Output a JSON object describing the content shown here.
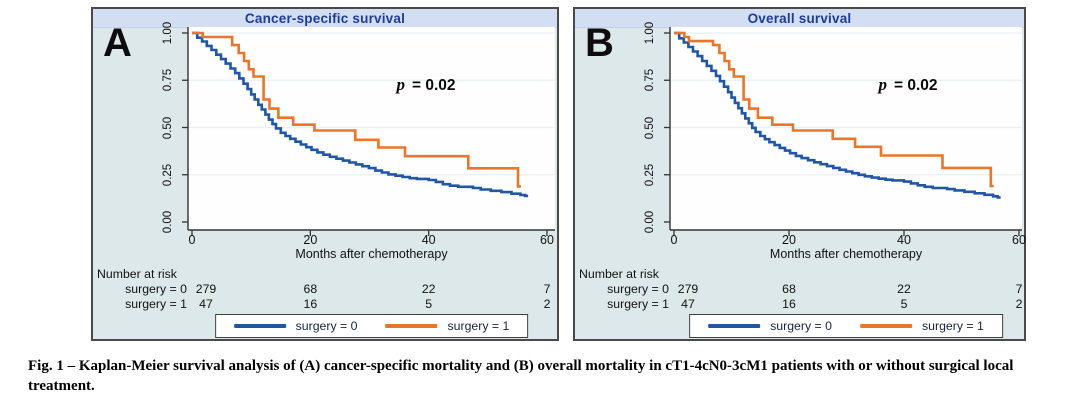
{
  "colors": {
    "curve_blue": "#2156a5",
    "curve_orange": "#e8762c",
    "panel_bg": "#dde8ea",
    "title_band_bg": "#d4def2",
    "title_text": "#1c3d99",
    "plot_bg": "#fefefe",
    "grid": "#e7f0f7",
    "axis": "#333333",
    "border": "#4a4a4a"
  },
  "caption": "Fig. 1 – Kaplan-Meier survival analysis of (A) cancer-specific mortality and (B) overall mortality in cT1-4cN0-3cM1 patients with or without surgical local treatment.",
  "chart_data": [
    {
      "panel_label": "A",
      "type": "line",
      "subtype": "kaplan-meier-step",
      "title": "Cancer-specific survival",
      "xlabel": "Months after chemotherapy",
      "xlim": [
        0,
        60
      ],
      "ylim": [
        0,
        1
      ],
      "xticks": [
        0,
        20,
        40,
        60
      ],
      "yticks": [
        "0.00",
        "0.25",
        "0.50",
        "0.75",
        "1.00"
      ],
      "grid": "horizontal",
      "p_annotation": {
        "symbol": "p",
        "text": "= 0.02"
      },
      "series": [
        {
          "name": "surgery = 0",
          "color": "#2156a5",
          "end_month": 56.8,
          "steps": [
            [
              0,
              1
            ],
            [
              0.9,
              0.975
            ],
            [
              1.7,
              0.955
            ],
            [
              2.5,
              0.932
            ],
            [
              3.3,
              0.91
            ],
            [
              4.1,
              0.885
            ],
            [
              4.9,
              0.862
            ],
            [
              5.7,
              0.838
            ],
            [
              6.5,
              0.812
            ],
            [
              7.3,
              0.788
            ],
            [
              8,
              0.76
            ],
            [
              8.7,
              0.732
            ],
            [
              9.4,
              0.703
            ],
            [
              10,
              0.675
            ],
            [
              10.6,
              0.648
            ],
            [
              11.2,
              0.62
            ],
            [
              11.8,
              0.595
            ],
            [
              12.4,
              0.568
            ],
            [
              13,
              0.542
            ],
            [
              13.6,
              0.518
            ],
            [
              14.2,
              0.495
            ],
            [
              15,
              0.472
            ],
            [
              15.8,
              0.455
            ],
            [
              16.6,
              0.44
            ],
            [
              17.5,
              0.425
            ],
            [
              18.4,
              0.41
            ],
            [
              19.3,
              0.396
            ],
            [
              20.2,
              0.382
            ],
            [
              21.2,
              0.368
            ],
            [
              22.2,
              0.356
            ],
            [
              23.3,
              0.345
            ],
            [
              24.4,
              0.335
            ],
            [
              25.5,
              0.325
            ],
            [
              26.6,
              0.315
            ],
            [
              27.7,
              0.305
            ],
            [
              28.8,
              0.295
            ],
            [
              29.9,
              0.285
            ],
            [
              31,
              0.272
            ],
            [
              32.1,
              0.262
            ],
            [
              33.2,
              0.252
            ],
            [
              34.4,
              0.245
            ],
            [
              35.6,
              0.238
            ],
            [
              36.8,
              0.232
            ],
            [
              38,
              0.228
            ],
            [
              40,
              0.222
            ],
            [
              41.2,
              0.212
            ],
            [
              42.4,
              0.2
            ],
            [
              43.6,
              0.192
            ],
            [
              45,
              0.186
            ],
            [
              47.5,
              0.18
            ],
            [
              48.8,
              0.172
            ],
            [
              50.5,
              0.165
            ],
            [
              52.3,
              0.158
            ],
            [
              54,
              0.15
            ],
            [
              55.5,
              0.143
            ],
            [
              56.3,
              0.138
            ]
          ]
        },
        {
          "name": "surgery = 1",
          "color": "#e8762c",
          "end_month": 55.6,
          "steps": [
            [
              0,
              1
            ],
            [
              1.8,
              0.979
            ],
            [
              6.8,
              0.936
            ],
            [
              7.9,
              0.894
            ],
            [
              8.8,
              0.852
            ],
            [
              9.6,
              0.808
            ],
            [
              10.4,
              0.77
            ],
            [
              12.1,
              0.648
            ],
            [
              13.1,
              0.6
            ],
            [
              14.6,
              0.552
            ],
            [
              17.1,
              0.515
            ],
            [
              20.7,
              0.484
            ],
            [
              27.6,
              0.435
            ],
            [
              31.5,
              0.394
            ],
            [
              36,
              0.348
            ],
            [
              46.7,
              0.284
            ],
            [
              55.1,
              0.188
            ]
          ]
        }
      ],
      "risk_table": {
        "title": "Number at risk",
        "rows": [
          {
            "label": "surgery = 0",
            "values": [
              279,
              68,
              22,
              7
            ]
          },
          {
            "label": "surgery = 1",
            "values": [
              47,
              16,
              5,
              2
            ]
          }
        ]
      },
      "legend": [
        {
          "label": "surgery = 0",
          "color": "#2156a5"
        },
        {
          "label": "surgery = 1",
          "color": "#e8762c"
        }
      ]
    },
    {
      "panel_label": "B",
      "type": "line",
      "subtype": "kaplan-meier-step",
      "title": "Overall survival",
      "xlabel": "Months after chemotherapy",
      "xlim": [
        0,
        60
      ],
      "ylim": [
        0,
        1
      ],
      "xticks": [
        0,
        20,
        40,
        60
      ],
      "yticks": [
        "0.00",
        "0.25",
        "0.50",
        "0.75",
        "1.00"
      ],
      "grid": "horizontal",
      "p_annotation": {
        "symbol": "p",
        "text": "= 0.02"
      },
      "series": [
        {
          "name": "surgery = 0",
          "color": "#2156a5",
          "end_month": 56.8,
          "steps": [
            [
              0,
              1
            ],
            [
              0.9,
              0.972
            ],
            [
              1.7,
              0.95
            ],
            [
              2.5,
              0.926
            ],
            [
              3.3,
              0.902
            ],
            [
              4.1,
              0.878
            ],
            [
              4.9,
              0.852
            ],
            [
              5.7,
              0.826
            ],
            [
              6.5,
              0.8
            ],
            [
              7.3,
              0.773
            ],
            [
              8,
              0.745
            ],
            [
              8.7,
              0.716
            ],
            [
              9.4,
              0.687
            ],
            [
              10,
              0.658
            ],
            [
              10.6,
              0.63
            ],
            [
              11.2,
              0.602
            ],
            [
              11.8,
              0.575
            ],
            [
              12.4,
              0.548
            ],
            [
              13,
              0.522
            ],
            [
              13.6,
              0.498
            ],
            [
              14.2,
              0.476
            ],
            [
              15,
              0.455
            ],
            [
              15.8,
              0.438
            ],
            [
              16.6,
              0.422
            ],
            [
              17.5,
              0.407
            ],
            [
              18.4,
              0.392
            ],
            [
              19.3,
              0.378
            ],
            [
              20.2,
              0.364
            ],
            [
              21.2,
              0.35
            ],
            [
              22.2,
              0.338
            ],
            [
              23.3,
              0.327
            ],
            [
              24.4,
              0.316
            ],
            [
              25.5,
              0.306
            ],
            [
              26.6,
              0.296
            ],
            [
              27.7,
              0.286
            ],
            [
              28.8,
              0.276
            ],
            [
              29.9,
              0.267
            ],
            [
              31,
              0.258
            ],
            [
              32.1,
              0.25
            ],
            [
              33.2,
              0.242
            ],
            [
              34.4,
              0.235
            ],
            [
              35.6,
              0.229
            ],
            [
              36.8,
              0.224
            ],
            [
              38,
              0.22
            ],
            [
              40,
              0.214
            ],
            [
              41.2,
              0.204
            ],
            [
              42.4,
              0.194
            ],
            [
              43.6,
              0.186
            ],
            [
              45,
              0.18
            ],
            [
              47.5,
              0.174
            ],
            [
              48.8,
              0.167
            ],
            [
              50.5,
              0.16
            ],
            [
              52.3,
              0.152
            ],
            [
              54,
              0.144
            ],
            [
              55.5,
              0.136
            ],
            [
              56.3,
              0.13
            ]
          ]
        },
        {
          "name": "surgery = 1",
          "color": "#e8762c",
          "end_month": 55.6,
          "steps": [
            [
              0,
              1
            ],
            [
              1.8,
              0.979
            ],
            [
              2.6,
              0.957
            ],
            [
              6.8,
              0.936
            ],
            [
              7.9,
              0.894
            ],
            [
              8.8,
              0.852
            ],
            [
              9.6,
              0.808
            ],
            [
              10.4,
              0.77
            ],
            [
              12.1,
              0.648
            ],
            [
              13.1,
              0.6
            ],
            [
              14.6,
              0.552
            ],
            [
              17.1,
              0.515
            ],
            [
              20.7,
              0.484
            ],
            [
              27.6,
              0.44
            ],
            [
              31.5,
              0.398
            ],
            [
              36,
              0.352
            ],
            [
              46.7,
              0.286
            ],
            [
              55.1,
              0.19
            ]
          ]
        }
      ],
      "risk_table": {
        "title": "Number at risk",
        "rows": [
          {
            "label": "surgery = 0",
            "values": [
              279,
              68,
              22,
              7
            ]
          },
          {
            "label": "surgery = 1",
            "values": [
              47,
              16,
              5,
              2
            ]
          }
        ]
      },
      "legend": [
        {
          "label": "surgery = 0",
          "color": "#2156a5"
        },
        {
          "label": "surgery = 1",
          "color": "#e8762c"
        }
      ]
    }
  ]
}
